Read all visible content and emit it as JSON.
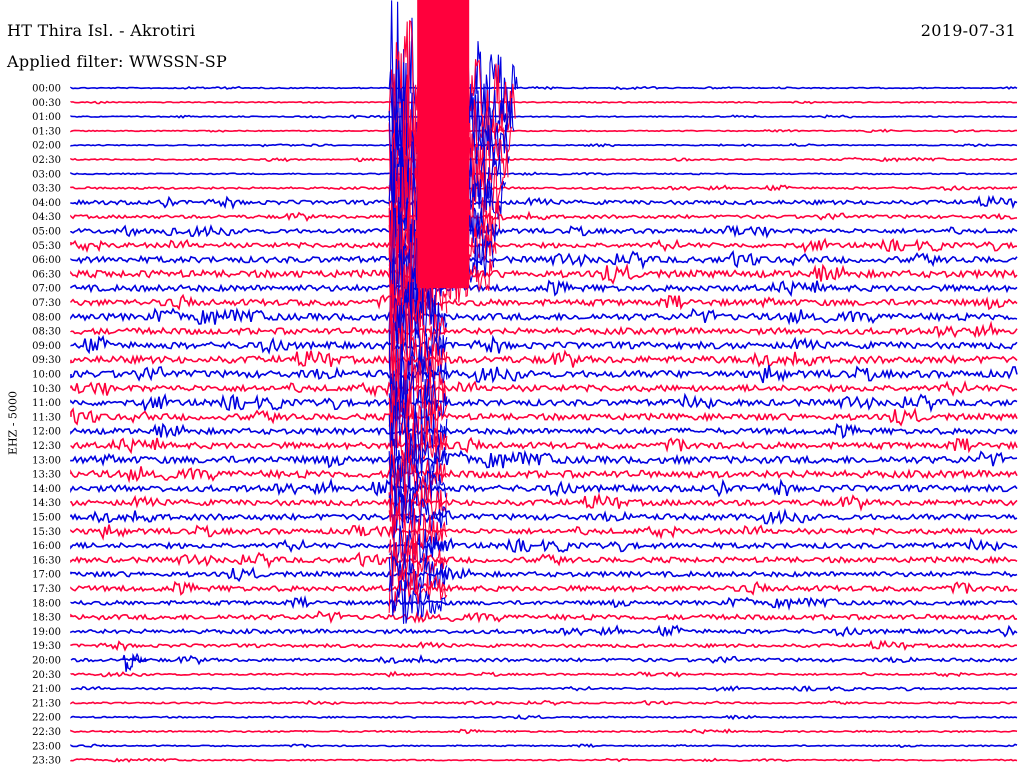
{
  "header": {
    "station": "HT Thira Isl. - Akrotiri",
    "filter": "Applied filter: WWSSN-SP",
    "date": "2019-07-31"
  },
  "chart_data": {
    "type": "line",
    "title": "HT Thira Isl. - Akrotiri",
    "subtitle": "Applied filter: WWSSN-SP",
    "date": "2019-07-31",
    "ylabel": "EHZ - 5000",
    "xlabel": "",
    "rows": [
      "00:00",
      "00:30",
      "01:00",
      "01:30",
      "02:00",
      "02:30",
      "03:00",
      "03:30",
      "04:00",
      "04:30",
      "05:00",
      "05:30",
      "06:00",
      "06:30",
      "07:00",
      "07:30",
      "08:00",
      "08:30",
      "09:00",
      "09:30",
      "10:00",
      "10:30",
      "11:00",
      "11:30",
      "12:00",
      "12:30",
      "13:00",
      "13:30",
      "14:00",
      "14:30",
      "15:00",
      "15:30",
      "16:00",
      "16:30",
      "17:00",
      "17:30",
      "18:00",
      "18:30",
      "19:00",
      "19:30",
      "20:00",
      "20:30",
      "21:00",
      "21:30",
      "22:00",
      "22:30",
      "23:00",
      "23:30"
    ],
    "row_colors": [
      "#0000e0",
      "#ff003c"
    ],
    "noise_levels": [
      0.5,
      0.5,
      0.5,
      0.5,
      0.5,
      0.7,
      0.6,
      1.0,
      2.0,
      1.6,
      2.2,
      2.4,
      3.0,
      3.4,
      3.0,
      3.0,
      3.2,
      3.0,
      3.2,
      3.4,
      3.4,
      3.0,
      3.0,
      3.0,
      2.8,
      3.0,
      3.4,
      3.4,
      3.0,
      2.8,
      2.8,
      2.6,
      2.6,
      2.6,
      2.4,
      2.6,
      2.0,
      2.4,
      2.0,
      1.6,
      1.6,
      0.9,
      0.9,
      0.8,
      0.7,
      0.8,
      0.6,
      0.6
    ],
    "events": [
      {
        "label": "large earthquake",
        "onset_row": "00:00",
        "end_row": "18:00",
        "x_range": [
          0.336,
          0.472
        ],
        "peak_rows": [
          "00:00",
          "14:00"
        ]
      },
      {
        "label": "local event",
        "row": "20:00",
        "x": 0.055
      }
    ],
    "grid": false
  }
}
